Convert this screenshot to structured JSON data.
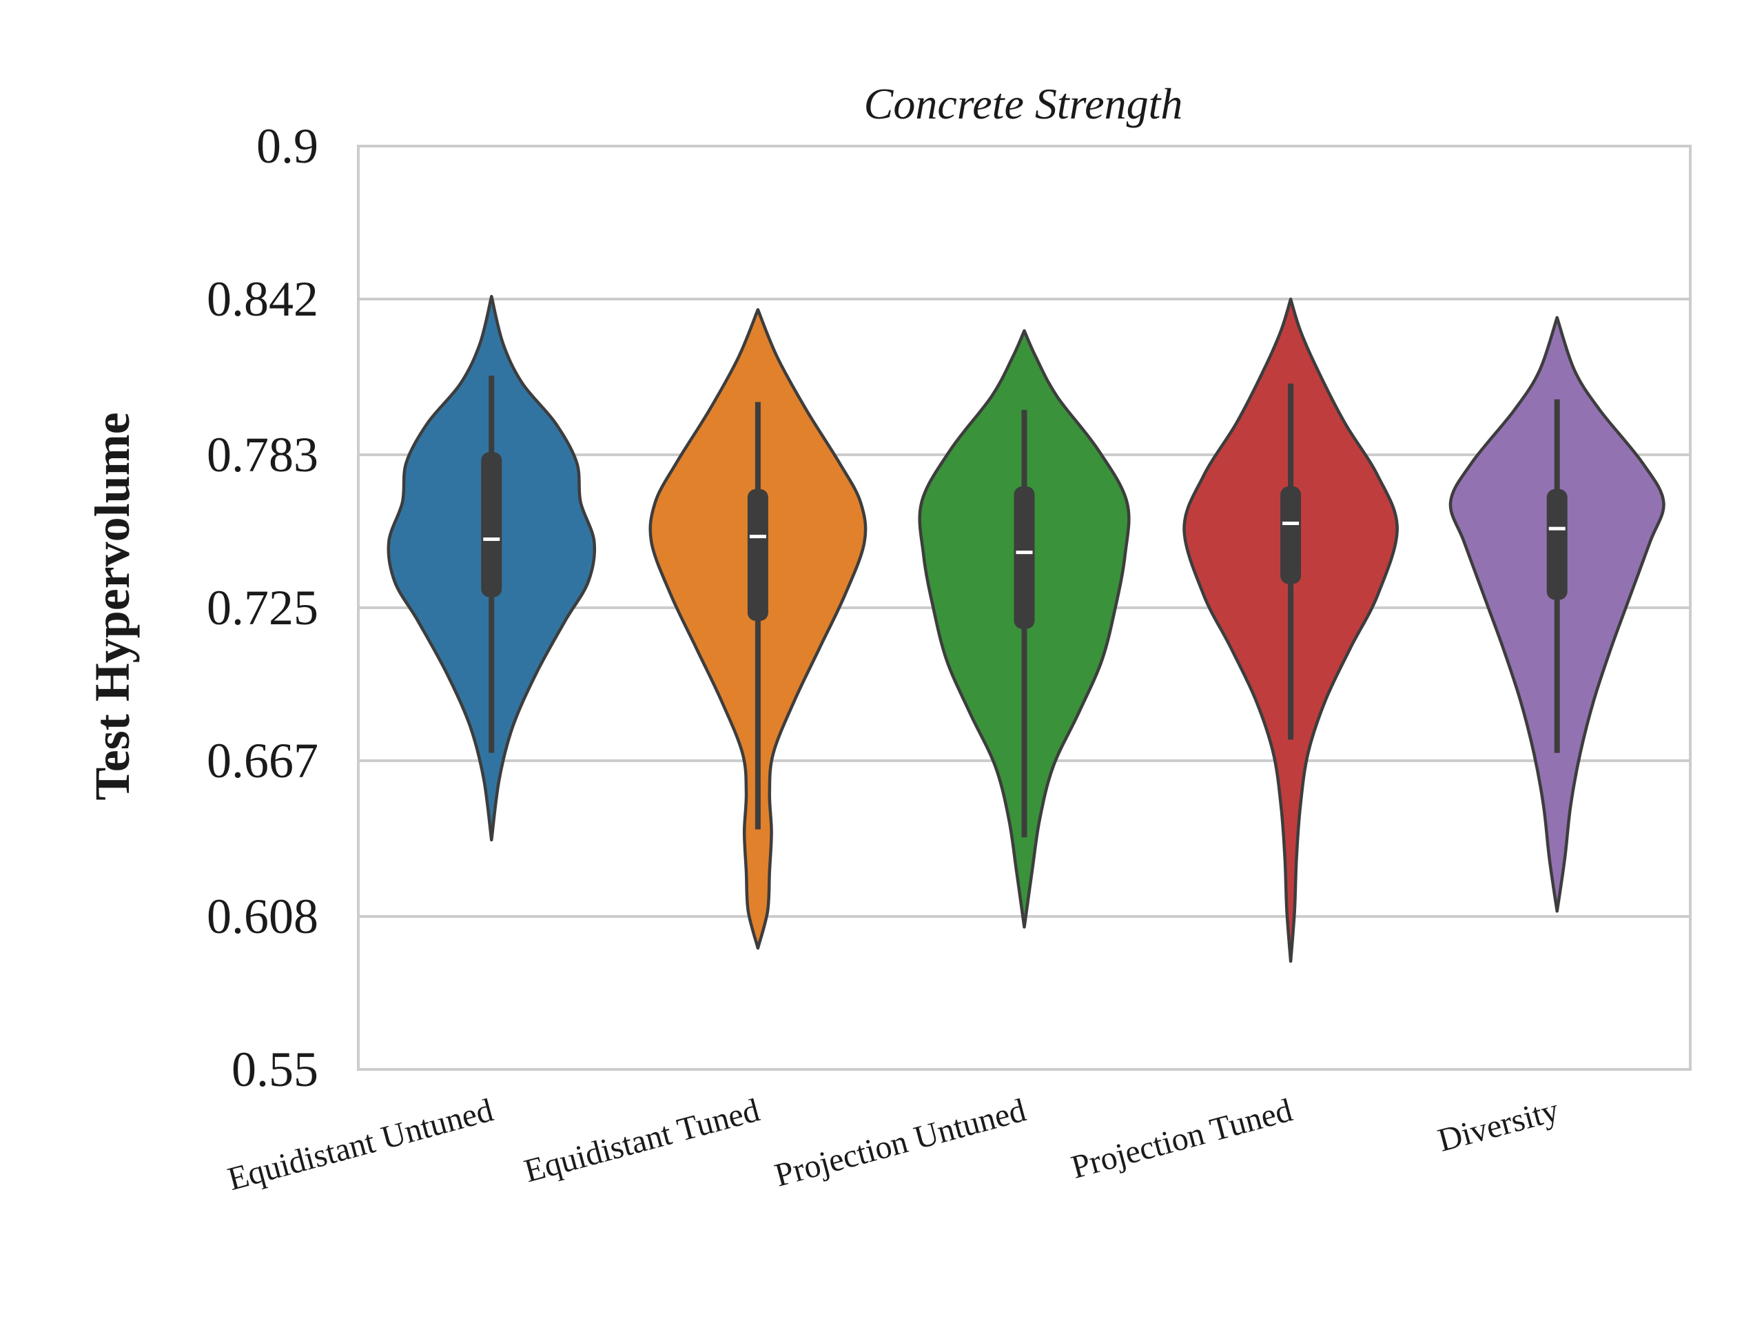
{
  "chart_data": {
    "type": "violin",
    "title": "Concrete Strength",
    "xlabel": "",
    "ylabel": "Test Hypervolume",
    "ylim": [
      0.55,
      0.9
    ],
    "yticks": [
      "0.9",
      "0.842",
      "0.783",
      "0.725",
      "0.667",
      "0.608",
      "0.55"
    ],
    "ytick_values": [
      0.9,
      0.842,
      0.783,
      0.725,
      0.667,
      0.608,
      0.55
    ],
    "grid": "horizontal",
    "categories": [
      "Equidistant Untuned",
      "Equidistant Tuned",
      "Projection Untuned",
      "Projection Tuned",
      "Diversity"
    ],
    "series": [
      {
        "color": "#3274a1",
        "min": 0.637,
        "max": 0.843,
        "q1": 0.729,
        "median": 0.751,
        "q3": 0.784,
        "whisker_low": 0.67,
        "whisker_high": 0.813,
        "density": [
          [
            0.637,
            0.0
          ],
          [
            0.66,
            0.04
          ],
          [
            0.68,
            0.11
          ],
          [
            0.7,
            0.23
          ],
          [
            0.72,
            0.38
          ],
          [
            0.735,
            0.5
          ],
          [
            0.75,
            0.53
          ],
          [
            0.765,
            0.46
          ],
          [
            0.78,
            0.44
          ],
          [
            0.795,
            0.33
          ],
          [
            0.81,
            0.16
          ],
          [
            0.825,
            0.06
          ],
          [
            0.843,
            0.0
          ]
        ]
      },
      {
        "color": "#e1812c",
        "min": 0.596,
        "max": 0.838,
        "q1": 0.72,
        "median": 0.752,
        "q3": 0.77,
        "whisker_low": 0.641,
        "whisker_high": 0.803,
        "density": [
          [
            0.596,
            0.0
          ],
          [
            0.61,
            0.05
          ],
          [
            0.625,
            0.06
          ],
          [
            0.64,
            0.07
          ],
          [
            0.655,
            0.06
          ],
          [
            0.67,
            0.08
          ],
          [
            0.69,
            0.19
          ],
          [
            0.71,
            0.32
          ],
          [
            0.73,
            0.45
          ],
          [
            0.75,
            0.55
          ],
          [
            0.765,
            0.53
          ],
          [
            0.78,
            0.42
          ],
          [
            0.8,
            0.25
          ],
          [
            0.82,
            0.1
          ],
          [
            0.838,
            0.0
          ]
        ]
      },
      {
        "color": "#3a923a",
        "min": 0.604,
        "max": 0.83,
        "q1": 0.717,
        "median": 0.746,
        "q3": 0.771,
        "whisker_low": 0.638,
        "whisker_high": 0.8,
        "density": [
          [
            0.604,
            0.0
          ],
          [
            0.625,
            0.04
          ],
          [
            0.645,
            0.08
          ],
          [
            0.665,
            0.15
          ],
          [
            0.685,
            0.28
          ],
          [
            0.705,
            0.4
          ],
          [
            0.725,
            0.47
          ],
          [
            0.745,
            0.52
          ],
          [
            0.765,
            0.53
          ],
          [
            0.785,
            0.38
          ],
          [
            0.805,
            0.17
          ],
          [
            0.82,
            0.06
          ],
          [
            0.83,
            0.0
          ]
        ]
      },
      {
        "color": "#c03d3e",
        "min": 0.591,
        "max": 0.842,
        "q1": 0.734,
        "median": 0.757,
        "q3": 0.771,
        "whisker_low": 0.675,
        "whisker_high": 0.81,
        "density": [
          [
            0.591,
            0.0
          ],
          [
            0.61,
            0.02
          ],
          [
            0.63,
            0.03
          ],
          [
            0.65,
            0.05
          ],
          [
            0.67,
            0.09
          ],
          [
            0.69,
            0.18
          ],
          [
            0.71,
            0.31
          ],
          [
            0.73,
            0.45
          ],
          [
            0.755,
            0.55
          ],
          [
            0.775,
            0.45
          ],
          [
            0.795,
            0.28
          ],
          [
            0.815,
            0.14
          ],
          [
            0.83,
            0.05
          ],
          [
            0.842,
            0.0
          ]
        ]
      },
      {
        "color": "#9372b2",
        "min": 0.61,
        "max": 0.835,
        "q1": 0.728,
        "median": 0.755,
        "q3": 0.77,
        "whisker_low": 0.67,
        "whisker_high": 0.804,
        "density": [
          [
            0.61,
            0.0
          ],
          [
            0.63,
            0.04
          ],
          [
            0.65,
            0.07
          ],
          [
            0.67,
            0.12
          ],
          [
            0.69,
            0.19
          ],
          [
            0.71,
            0.28
          ],
          [
            0.73,
            0.38
          ],
          [
            0.75,
            0.48
          ],
          [
            0.765,
            0.55
          ],
          [
            0.78,
            0.44
          ],
          [
            0.8,
            0.22
          ],
          [
            0.815,
            0.09
          ],
          [
            0.835,
            0.0
          ]
        ]
      }
    ]
  }
}
